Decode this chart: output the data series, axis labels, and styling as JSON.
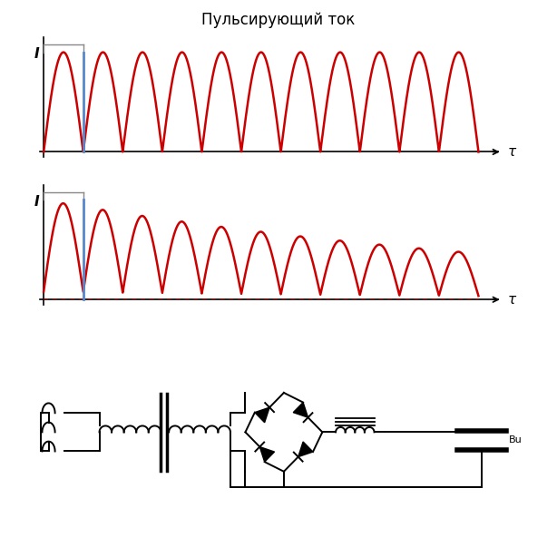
{
  "title": "Пульсирующий ток",
  "title_fontsize": 12,
  "wave_color": "#CC0000",
  "axis_color": "#000000",
  "blue_line_color": "#5588CC",
  "tau_label": "τ",
  "I_label": "I",
  "background_color": "#FFFFFF"
}
